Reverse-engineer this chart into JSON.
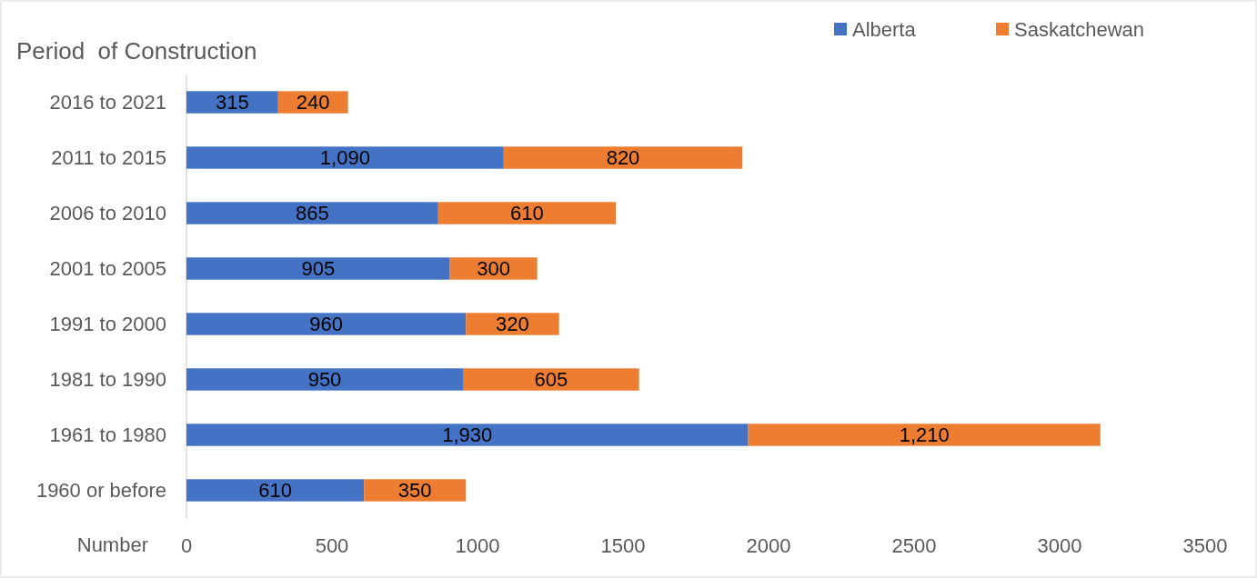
{
  "chart_data": {
    "type": "bar",
    "orientation": "horizontal",
    "stacked": true,
    "ylabel": "Period  of Construction",
    "xlabel": "Number",
    "categories": [
      "2016 to 2021",
      "2011 to 2015",
      "2006 to 2010",
      "2001 to 2005",
      "1991 to 2000",
      "1981 to 1990",
      "1961 to 1980",
      "1960 or before"
    ],
    "series": [
      {
        "name": "Alberta",
        "color": "#4472c4",
        "values": [
          315,
          1090,
          865,
          905,
          960,
          950,
          1930,
          610
        ],
        "value_labels": [
          "315",
          "1,090",
          "865",
          "905",
          "960",
          "950",
          "1,930",
          "610"
        ]
      },
      {
        "name": "Saskatchewan",
        "color": "#ed7d31",
        "values": [
          240,
          820,
          610,
          300,
          320,
          605,
          1210,
          350
        ],
        "value_labels": [
          "240",
          "820",
          "610",
          "300",
          "320",
          "605",
          "1,210",
          "350"
        ]
      }
    ],
    "xlim": [
      0,
      3500
    ],
    "xticks": [
      0,
      500,
      1000,
      1500,
      2000,
      2500,
      3000,
      3500
    ],
    "legend": "top right",
    "grid": false
  }
}
